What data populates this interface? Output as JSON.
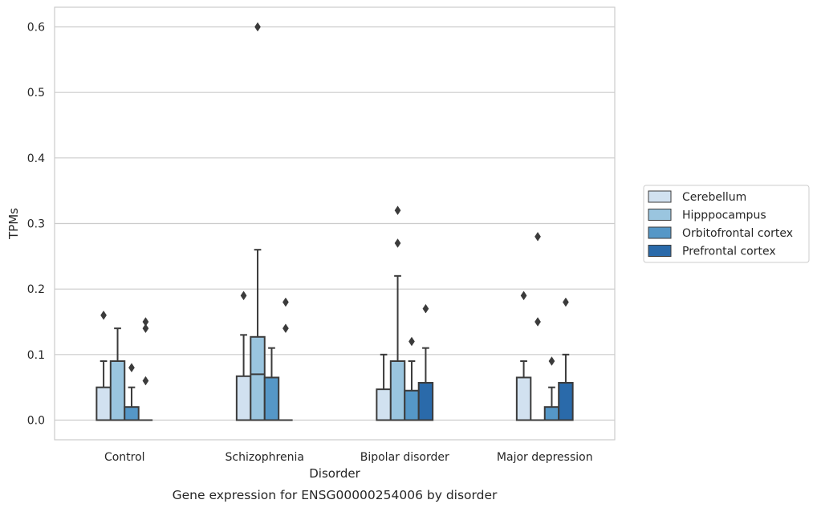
{
  "chart_data": {
    "type": "box",
    "caption": "Gene expression for ENSG00000254006 by disorder",
    "xlabel": "Disorder",
    "ylabel": "TPMs",
    "ylim": [
      -0.03,
      0.63
    ],
    "yticks": [
      0.0,
      0.1,
      0.2,
      0.3,
      0.4,
      0.5,
      0.6
    ],
    "ytick_labels": [
      "0.0",
      "0.1",
      "0.2",
      "0.3",
      "0.4",
      "0.5",
      "0.6"
    ],
    "grid": "horizontal",
    "legend_position": "right",
    "categories": [
      "Control",
      "Schizophrenia",
      "Bipolar disorder",
      "Major depression"
    ],
    "series": [
      {
        "name": "Cerebellum",
        "color": "#d1e1f0",
        "boxes": [
          {
            "q1": 0.0,
            "median": 0.0,
            "q3": 0.05,
            "whisker_low": 0.0,
            "whisker_high": 0.09,
            "outliers": [
              0.16
            ]
          },
          {
            "q1": 0.0,
            "median": 0.0,
            "q3": 0.067,
            "whisker_low": 0.0,
            "whisker_high": 0.13,
            "outliers": [
              0.19
            ]
          },
          {
            "q1": 0.0,
            "median": 0.0,
            "q3": 0.047,
            "whisker_low": 0.0,
            "whisker_high": 0.1,
            "outliers": []
          },
          {
            "q1": 0.0,
            "median": 0.0,
            "q3": 0.065,
            "whisker_low": 0.0,
            "whisker_high": 0.09,
            "outliers": [
              0.19
            ]
          }
        ]
      },
      {
        "name": "Hipppocampus",
        "color": "#9ac5df",
        "boxes": [
          {
            "q1": 0.0,
            "median": 0.0,
            "q3": 0.09,
            "whisker_low": 0.0,
            "whisker_high": 0.14,
            "outliers": []
          },
          {
            "q1": 0.0,
            "median": 0.07,
            "q3": 0.127,
            "whisker_low": 0.0,
            "whisker_high": 0.26,
            "outliers": [
              0.6
            ]
          },
          {
            "q1": 0.0,
            "median": 0.0,
            "q3": 0.09,
            "whisker_low": 0.0,
            "whisker_high": 0.22,
            "outliers": [
              0.32,
              0.27
            ]
          },
          {
            "q1": 0.0,
            "median": 0.0,
            "q3": 0.0,
            "whisker_low": 0.0,
            "whisker_high": 0.0,
            "outliers": [
              0.28,
              0.15
            ]
          }
        ]
      },
      {
        "name": "Orbitofrontal cortex",
        "color": "#5597c7",
        "boxes": [
          {
            "q1": 0.0,
            "median": 0.0,
            "q3": 0.02,
            "whisker_low": 0.0,
            "whisker_high": 0.05,
            "outliers": [
              0.08
            ]
          },
          {
            "q1": 0.0,
            "median": 0.0,
            "q3": 0.065,
            "whisker_low": 0.0,
            "whisker_high": 0.11,
            "outliers": []
          },
          {
            "q1": 0.0,
            "median": 0.0,
            "q3": 0.045,
            "whisker_low": 0.0,
            "whisker_high": 0.09,
            "outliers": [
              0.12
            ]
          },
          {
            "q1": 0.0,
            "median": 0.0,
            "q3": 0.02,
            "whisker_low": 0.0,
            "whisker_high": 0.05,
            "outliers": [
              0.09
            ]
          }
        ]
      },
      {
        "name": "Prefrontal cortex",
        "color": "#2a6aaa",
        "boxes": [
          {
            "q1": 0.0,
            "median": 0.0,
            "q3": 0.0,
            "whisker_low": 0.0,
            "whisker_high": 0.0,
            "outliers": [
              0.15,
              0.14,
              0.06
            ]
          },
          {
            "q1": 0.0,
            "median": 0.0,
            "q3": 0.0,
            "whisker_low": 0.0,
            "whisker_high": 0.0,
            "outliers": [
              0.18,
              0.14
            ]
          },
          {
            "q1": 0.0,
            "median": 0.0,
            "q3": 0.057,
            "whisker_low": 0.0,
            "whisker_high": 0.11,
            "outliers": [
              0.17
            ]
          },
          {
            "q1": 0.0,
            "median": 0.0,
            "q3": 0.057,
            "whisker_low": 0.0,
            "whisker_high": 0.1,
            "outliers": [
              0.18
            ]
          }
        ]
      }
    ]
  }
}
